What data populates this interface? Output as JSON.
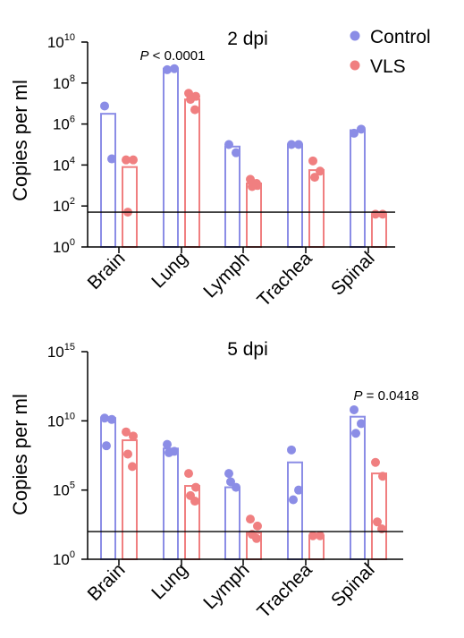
{
  "legend": [
    {
      "name": "Control",
      "color": "#8b8de6"
    },
    {
      "name": "VLS",
      "color": "#f07f80"
    }
  ],
  "chart_data": [
    {
      "type": "bar",
      "title": "2 dpi",
      "ylabel": "Copies per ml",
      "yscale": "log",
      "ylim_exp": [
        0,
        10
      ],
      "yticks": [
        {
          "base": "10",
          "exp": "0"
        },
        {
          "base": "10",
          "exp": "2"
        },
        {
          "base": "10",
          "exp": "4"
        },
        {
          "base": "10",
          "exp": "6"
        },
        {
          "base": "10",
          "exp": "8"
        },
        {
          "base": "10",
          "exp": "10"
        }
      ],
      "categories": [
        "Brain",
        "Lung",
        "Lymph",
        "Trachea",
        "Spinal"
      ],
      "threshold_exp": 1.7,
      "annotation": {
        "category_index": 1,
        "text": "P < 0.0001"
      },
      "series": [
        {
          "name": "Control",
          "color": "#8b8de6",
          "bar_exp": [
            6.5,
            8.7,
            4.9,
            5.0,
            5.7
          ],
          "points_exp": [
            [
              6.88,
              4.3
            ],
            [
              8.65,
              8.7
            ],
            [
              5.0,
              4.6
            ],
            [
              5.0,
              5.0
            ],
            [
              5.55,
              5.75
            ]
          ]
        },
        {
          "name": "VLS",
          "color": "#f07f80",
          "bar_exp": [
            3.9,
            7.2,
            3.1,
            3.75,
            1.6
          ],
          "points_exp": [
            [
              4.25,
              4.25,
              1.7
            ],
            [
              7.5,
              7.35,
              7.2,
              6.7
            ],
            [
              3.3,
              3.0,
              2.95,
              3.1
            ],
            [
              4.2,
              3.7,
              3.4
            ],
            [
              1.6,
              1.6
            ]
          ]
        }
      ]
    },
    {
      "type": "bar",
      "title": "5 dpi",
      "ylabel": "Copies per ml",
      "yscale": "log",
      "ylim_exp": [
        0,
        15
      ],
      "yticks": [
        {
          "base": "10",
          "exp": "0"
        },
        {
          "base": "10",
          "exp": "5"
        },
        {
          "base": "10",
          "exp": "10"
        },
        {
          "base": "10",
          "exp": "15"
        }
      ],
      "categories": [
        "Brain",
        "Lung",
        "Lymph",
        "Trachea",
        "Spinal"
      ],
      "threshold_exp": 2.0,
      "annotation": {
        "category_index": 4,
        "text": "P = 0.0418"
      },
      "series": [
        {
          "name": "Control",
          "color": "#8b8de6",
          "bar_exp": [
            10.2,
            8.0,
            5.2,
            7.0,
            10.3
          ],
          "points_exp": [
            [
              10.2,
              10.1,
              8.2
            ],
            [
              8.3,
              7.8,
              7.7
            ],
            [
              6.2,
              5.2,
              5.6
            ],
            [
              7.9,
              5.0,
              4.3
            ],
            [
              10.8,
              9.8,
              9.1
            ]
          ]
        },
        {
          "name": "VLS",
          "color": "#f07f80",
          "bar_exp": [
            8.6,
            5.3,
            1.9,
            1.7,
            6.2
          ],
          "points_exp": [
            [
              9.2,
              8.9,
              7.6,
              6.7
            ],
            [
              6.2,
              5.2,
              4.6,
              4.2
            ],
            [
              2.9,
              2.4,
              1.8,
              1.5
            ],
            [
              1.7,
              1.7
            ],
            [
              7.0,
              6.0,
              2.7,
              2.2
            ]
          ]
        }
      ]
    }
  ]
}
